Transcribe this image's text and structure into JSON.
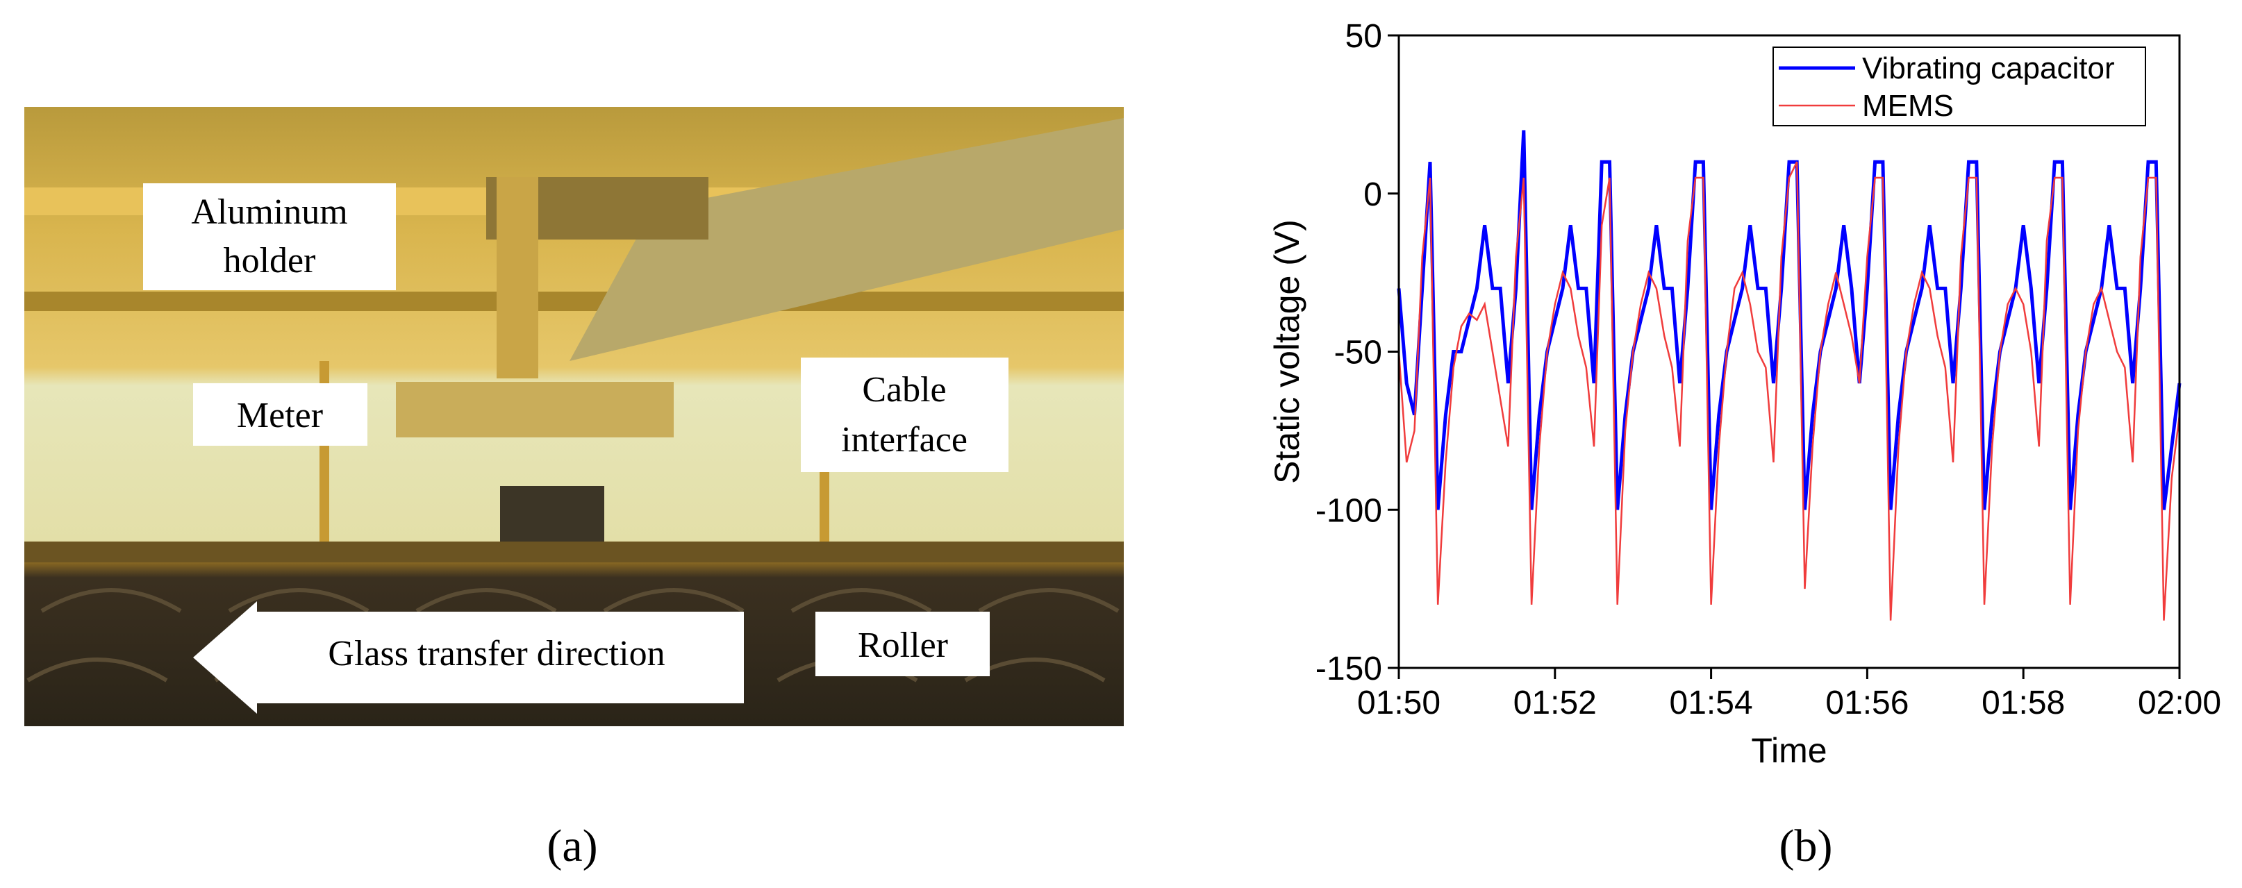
{
  "panel_a": {
    "labels": [
      {
        "lines": [
          "Aluminum",
          "holder"
        ]
      },
      {
        "lines": [
          "Meter"
        ]
      },
      {
        "lines": [
          "Cable",
          "interface"
        ]
      },
      {
        "lines": [
          "Glass transfer direction"
        ]
      },
      {
        "lines": [
          "Roller"
        ]
      }
    ],
    "caption": "(a)"
  },
  "panel_b": {
    "caption": "(b)"
  },
  "chart_data": {
    "type": "line",
    "xlabel": "Time",
    "ylabel": "Static voltage (V)",
    "x": [
      110,
      110.1,
      110.2,
      110.3,
      110.4,
      110.5,
      110.6,
      110.7,
      110.8,
      110.9,
      111,
      111.1,
      111.2,
      111.3,
      111.4,
      111.5,
      111.6,
      111.7,
      111.8,
      111.9,
      112,
      112.1,
      112.2,
      112.3,
      112.4,
      112.5,
      112.6,
      112.7,
      112.8,
      112.9,
      113,
      113.1,
      113.2,
      113.3,
      113.4,
      113.5,
      113.6,
      113.7,
      113.8,
      113.9,
      114,
      114.1,
      114.2,
      114.3,
      114.4,
      114.5,
      114.6,
      114.7,
      114.8,
      114.9,
      115,
      115.1,
      115.2,
      115.3,
      115.4,
      115.5,
      115.6,
      115.7,
      115.8,
      115.9,
      116,
      116.1,
      116.2,
      116.3,
      116.4,
      116.5,
      116.6,
      116.7,
      116.8,
      116.9,
      117,
      117.1,
      117.2,
      117.3,
      117.4,
      117.5,
      117.6,
      117.7,
      117.8,
      117.9,
      118,
      118.1,
      118.2,
      118.3,
      118.4,
      118.5,
      118.6,
      118.7,
      118.8,
      118.9,
      119,
      119.1,
      119.2,
      119.3,
      119.4,
      119.5,
      119.6,
      119.7,
      119.8,
      119.9,
      120
    ],
    "series": [
      {
        "name": "Vibrating capacitor",
        "color": "#0000ff",
        "width": 5,
        "values": [
          -30,
          -60,
          -70,
          -30,
          10,
          -100,
          -70,
          -50,
          -50,
          -40,
          -30,
          -10,
          -30,
          -30,
          -60,
          -30,
          20,
          -100,
          -70,
          -50,
          -40,
          -30,
          -10,
          -30,
          -30,
          -60,
          10,
          10,
          -100,
          -70,
          -50,
          -40,
          -30,
          -10,
          -30,
          -30,
          -60,
          -30,
          10,
          10,
          -100,
          -70,
          -50,
          -40,
          -30,
          -10,
          -30,
          -30,
          -60,
          -30,
          10,
          10,
          -100,
          -70,
          -50,
          -40,
          -30,
          -10,
          -30,
          -60,
          -30,
          10,
          10,
          -100,
          -70,
          -50,
          -40,
          -30,
          -10,
          -30,
          -30,
          -60,
          -30,
          10,
          10,
          -100,
          -70,
          -50,
          -40,
          -30,
          -10,
          -30,
          -60,
          -30,
          10,
          10,
          -100,
          -70,
          -50,
          -40,
          -30,
          -10,
          -30,
          -30,
          -60,
          -30,
          10,
          10,
          -100,
          -80,
          -60
        ]
      },
      {
        "name": "MEMS",
        "color": "#f03c3c",
        "width": 2.5,
        "values": [
          -50,
          -85,
          -75,
          -20,
          5,
          -130,
          -85,
          -55,
          -42,
          -38,
          -40,
          -35,
          -50,
          -65,
          -80,
          -20,
          5,
          -130,
          -80,
          -50,
          -35,
          -25,
          -30,
          -45,
          -55,
          -80,
          -10,
          5,
          -130,
          -75,
          -50,
          -35,
          -25,
          -30,
          -45,
          -55,
          -80,
          -15,
          5,
          5,
          -130,
          -80,
          -50,
          -30,
          -25,
          -35,
          -50,
          -55,
          -85,
          -20,
          5,
          10,
          -125,
          -80,
          -50,
          -35,
          -25,
          -35,
          -45,
          -60,
          -20,
          5,
          5,
          -135,
          -80,
          -50,
          -35,
          -25,
          -30,
          -45,
          -55,
          -85,
          -20,
          5,
          5,
          -130,
          -80,
          -50,
          -35,
          -30,
          -35,
          -50,
          -80,
          -15,
          5,
          5,
          -130,
          -75,
          -50,
          -35,
          -30,
          -40,
          -50,
          -55,
          -85,
          -20,
          5,
          5,
          -135,
          -90,
          -70
        ]
      }
    ],
    "xlim": [
      110,
      120
    ],
    "xticks": [
      {
        "value": 110,
        "label": "01:50"
      },
      {
        "value": 112,
        "label": "01:52"
      },
      {
        "value": 114,
        "label": "01:54"
      },
      {
        "value": 116,
        "label": "01:56"
      },
      {
        "value": 118,
        "label": "01:58"
      },
      {
        "value": 120,
        "label": "02:00"
      }
    ],
    "ylim": [
      -150,
      50
    ],
    "yticks": [
      -150,
      -100,
      -50,
      0,
      50
    ],
    "legend": "upper right"
  }
}
